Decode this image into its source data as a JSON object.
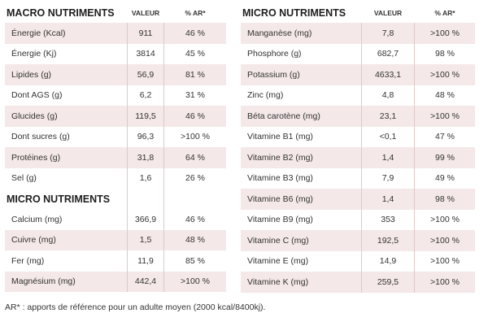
{
  "left": {
    "title": "MACRO NUTRIMENTS",
    "col_value": "VALEUR",
    "col_ar": "% AR*",
    "rows": [
      {
        "name": "Énergie (Kcal)",
        "value": "911",
        "ar": "46 %"
      },
      {
        "name": "Énergie (Kj)",
        "value": "3814",
        "ar": "45 %"
      },
      {
        "name": "Lipides (g)",
        "value": "56,9",
        "ar": "81 %"
      },
      {
        "name": "Dont AGS (g)",
        "value": "6,2",
        "ar": "31 %"
      },
      {
        "name": "Glucides (g)",
        "value": "119,5",
        "ar": "46 %"
      },
      {
        "name": "Dont sucres (g)",
        "value": "96,3",
        "ar": ">100 %"
      },
      {
        "name": "Protéines (g)",
        "value": "31,8",
        "ar": "64 %"
      },
      {
        "name": "Sel (g)",
        "value": "1,6",
        "ar": "26 %"
      }
    ],
    "micro_title": "MICRO NUTRIMENTS",
    "micro_rows": [
      {
        "name": "Calcium (mg)",
        "value": "366,9",
        "ar": "46 %"
      },
      {
        "name": "Cuivre (mg)",
        "value": "1,5",
        "ar": "48 %"
      },
      {
        "name": "Fer (mg)",
        "value": "11,9",
        "ar": "85 %"
      },
      {
        "name": "Magnésium (mg)",
        "value": "442,4",
        "ar": ">100 %"
      }
    ]
  },
  "right": {
    "title": "MICRO NUTRIMENTS",
    "col_value": "VALEUR",
    "col_ar": "% AR*",
    "rows": [
      {
        "name": "Manganèse (mg)",
        "value": "7,8",
        "ar": ">100 %"
      },
      {
        "name": "Phosphore (g)",
        "value": "682,7",
        "ar": "98 %"
      },
      {
        "name": "Potassium (g)",
        "value": "4633,1",
        "ar": ">100 %"
      },
      {
        "name": "Zinc (mg)",
        "value": "4,8",
        "ar": "48 %"
      },
      {
        "name": "Béta carotène (mg)",
        "value": "23,1",
        "ar": ">100 %"
      },
      {
        "name": "Vitamine B1 (mg)",
        "value": "<0,1",
        "ar": "47 %"
      },
      {
        "name": "Vitamine B2 (mg)",
        "value": "1,4",
        "ar": "99 %"
      },
      {
        "name": "Vitamine B3 (mg)",
        "value": "7,9",
        "ar": "49 %"
      },
      {
        "name": "Vitamine B6 (mg)",
        "value": "1,4",
        "ar": "98 %"
      },
      {
        "name": "Vitamine B9 (mg)",
        "value": "353",
        "ar": ">100 %"
      },
      {
        "name": "Vitamine C (mg)",
        "value": "192,5",
        "ar": ">100 %"
      },
      {
        "name": "Vitamine E (mg)",
        "value": "14,9",
        "ar": ">100 %"
      },
      {
        "name": "Vitamine K (mg)",
        "value": "259,5",
        "ar": ">100 %"
      }
    ]
  },
  "footnote": "AR* : apports de référence pour un adulte moyen (2000 kcal/8400kj).",
  "colors": {
    "row_shade": "#f4e8e8",
    "divider": "#e0c8c8"
  }
}
